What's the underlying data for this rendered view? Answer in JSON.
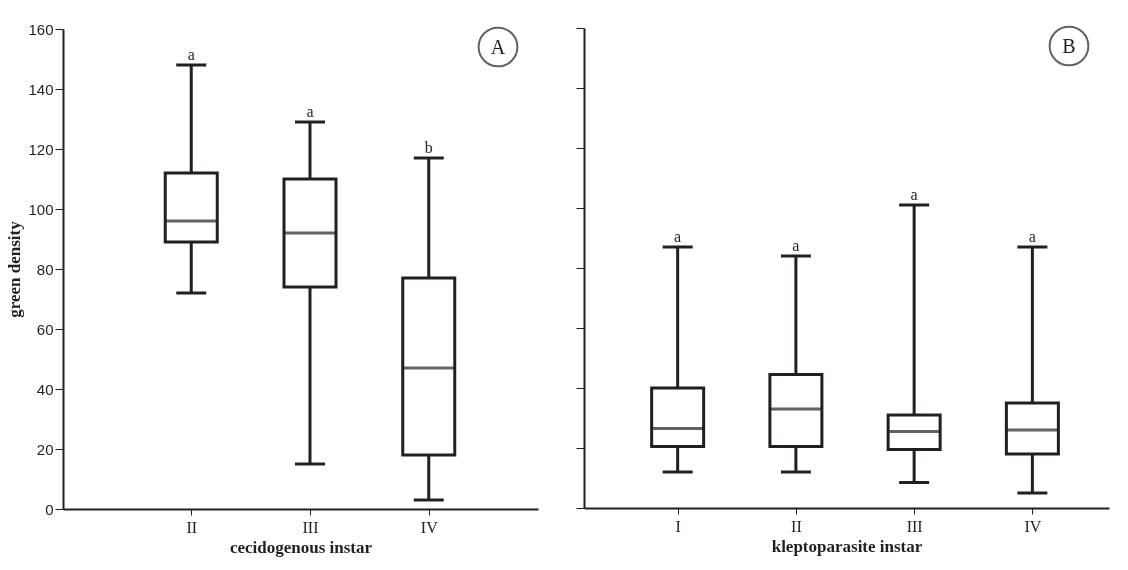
{
  "chart_data": [
    {
      "type": "box",
      "xlabel": "cecidogenous instar",
      "ylabel": "green density",
      "categories": [
        "II",
        "III",
        "IV"
      ],
      "boxes": [
        {
          "low": 72,
          "q1": 89,
          "median": 96,
          "q3": 112,
          "high": 148
        },
        {
          "low": 15,
          "q1": 74,
          "median": 92,
          "q3": 110,
          "high": 129
        },
        {
          "low": 3,
          "q1": 18,
          "median": 47,
          "q3": 77,
          "high": 117
        }
      ],
      "ylim": [
        0,
        160
      ],
      "yticks": [
        0,
        20,
        40,
        60,
        80,
        100,
        120,
        140,
        160
      ],
      "grid": false,
      "annotations": [
        {
          "text": "a",
          "x": "II",
          "y": 148
        },
        {
          "text": "a",
          "x": "III",
          "y": 129
        },
        {
          "text": "b",
          "x": "IV",
          "y": 117
        },
        "A"
      ]
    },
    {
      "type": "box",
      "xlabel": "kleptoparasite instar",
      "categories": [
        "I",
        "II",
        "III",
        "IV"
      ],
      "boxes": [
        {
          "low": 12,
          "q1": 20.5,
          "median": 26.5,
          "q3": 40,
          "high": 87
        },
        {
          "low": 12,
          "q1": 20.5,
          "median": 33,
          "q3": 44.5,
          "high": 84
        },
        {
          "low": 8.5,
          "q1": 19.5,
          "median": 25.5,
          "q3": 31,
          "high": 101
        },
        {
          "low": 5,
          "q1": 18,
          "median": 26,
          "q3": 35,
          "high": 87
        }
      ],
      "ylim": [
        0,
        160
      ],
      "yticks": [
        0,
        20,
        40,
        60,
        80,
        100,
        120,
        140,
        160
      ],
      "grid": false,
      "tick_labels": "x",
      "annotations": [
        {
          "text": "a",
          "x": "I",
          "y": 87
        },
        {
          "text": "a",
          "x": "II",
          "y": 84
        },
        {
          "text": "a",
          "x": "III",
          "y": 101
        },
        {
          "text": "a",
          "x": "IV",
          "y": 87
        },
        "B"
      ]
    }
  ]
}
